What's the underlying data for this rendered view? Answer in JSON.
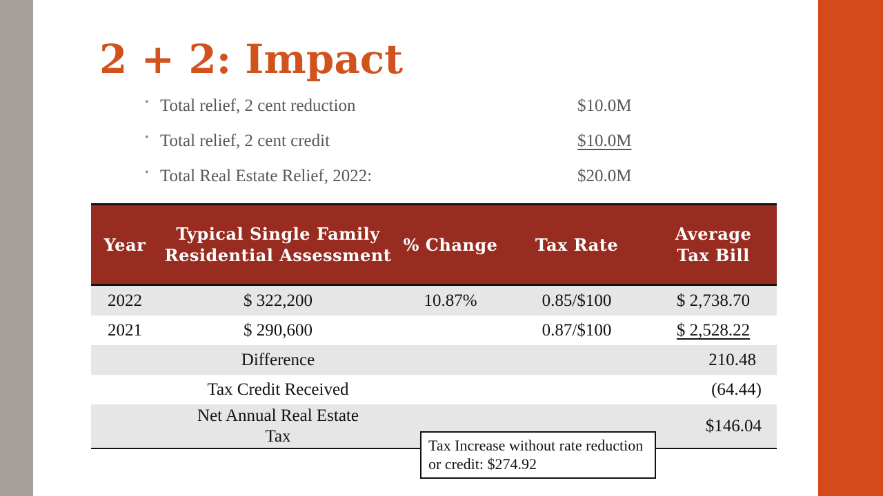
{
  "slide": {
    "title": "2 + 2: Impact",
    "colors": {
      "title": "#d2521e",
      "header_fill": "#992c20",
      "left_band": "#a6a09d",
      "right_band": "#d44a1a"
    }
  },
  "bullets": [
    {
      "label": "Total relief, 2 cent reduction",
      "amount": "$10.0M"
    },
    {
      "label": "Total relief, 2 cent credit",
      "amount": "$10.0M"
    },
    {
      "label": "Total Real Estate Relief, 2022:",
      "amount": "$20.0M"
    }
  ],
  "table": {
    "headers": {
      "year": "Year",
      "assessment": "Typical Single Family Residential Assessment",
      "change": "% Change",
      "rate": "Tax Rate",
      "bill": "Average Tax Bill"
    },
    "rows": [
      {
        "year": "2022",
        "assessment": "$ 322,200",
        "change": "10.87%",
        "rate": "0.85/$100",
        "bill": "$ 2,738.70"
      },
      {
        "year": "2021",
        "assessment": "$ 290,600",
        "change": "",
        "rate": "0.87/$100",
        "bill": "$ 2,528.22"
      }
    ],
    "summary": [
      {
        "label": "Difference",
        "value": "210.48"
      },
      {
        "label": "Tax Credit Received",
        "value": "(64.44)"
      },
      {
        "label": "Net Annual Real Estate Tax",
        "value": "$146.04"
      }
    ]
  },
  "callout": {
    "text": "Tax Increase without rate reduction or credit: $274.92"
  }
}
